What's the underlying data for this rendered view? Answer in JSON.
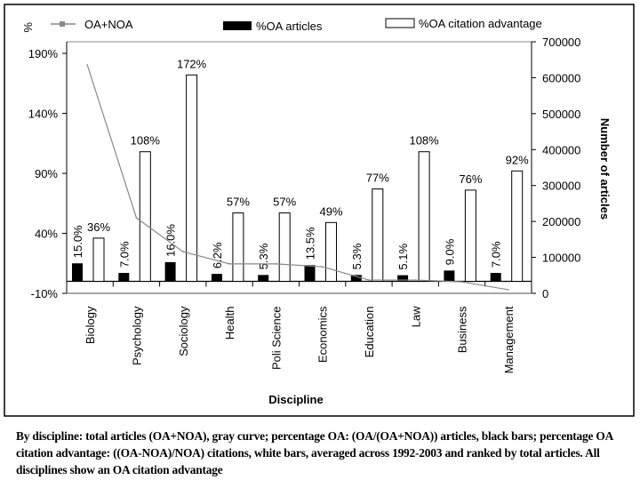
{
  "chart_data": {
    "type": "bar",
    "xlabel": "Discipline",
    "ylabel_left": "%",
    "ylabel_right": "Number of articles",
    "categories": [
      "Biology",
      "Psychology",
      "Sociology",
      "Health",
      "Poli Science",
      "Economics",
      "Education",
      "Law",
      "Business",
      "Management"
    ],
    "ylim_left": [
      -10,
      190
    ],
    "yticks_left": [
      "190%",
      "140%",
      "90%",
      "40%",
      "-10%"
    ],
    "ytick_values_left": [
      190,
      140,
      90,
      40,
      -10
    ],
    "ylim_right": [
      0,
      700000
    ],
    "yticks_right": [
      "700000",
      "600000",
      "500000",
      "400000",
      "300000",
      "200000",
      "100000",
      "0"
    ],
    "ytick_values_right": [
      700000,
      600000,
      500000,
      400000,
      300000,
      200000,
      100000,
      0
    ],
    "legend": [
      "OA+NOA",
      "%OA articles",
      "%OA citation advantage"
    ],
    "legend_placement": "top",
    "series": [
      {
        "name": "%OA articles",
        "type": "bar",
        "color": "#000000",
        "values": [
          15.0,
          7.0,
          16.0,
          6.2,
          5.3,
          13.5,
          5.3,
          5.1,
          9.0,
          7.0
        ],
        "labels": [
          "15.0%",
          "7.0%",
          "16.0%",
          "6.2%",
          "5.3%",
          "13.5%",
          "5.3%",
          "5.1%",
          "9.0%",
          "7.0%"
        ]
      },
      {
        "name": "%OA citation advantage",
        "type": "bar",
        "color": "#ffffff",
        "values": [
          36,
          108,
          172,
          57,
          57,
          49,
          77,
          108,
          76,
          92
        ],
        "labels": [
          "36%",
          "108%",
          "172%",
          "57%",
          "57%",
          "49%",
          "77%",
          "108%",
          "76%",
          "92%"
        ]
      },
      {
        "name": "OA+NOA",
        "type": "line",
        "axis": "right",
        "color": "#888888",
        "values": [
          636000,
          210000,
          116000,
          82000,
          82000,
          74000,
          37000,
          37000,
          32000,
          10000
        ]
      }
    ]
  },
  "caption": "By discipline: total articles (OA+NOA), gray curve; percentage OA: (OA/(OA+NOA)) articles, black bars; percentage OA citation advantage: ((OA-NOA)/NOA) citations, white bars, averaged across 1992-2003 and ranked by total articles. All disciplines show an OA citation advantage"
}
